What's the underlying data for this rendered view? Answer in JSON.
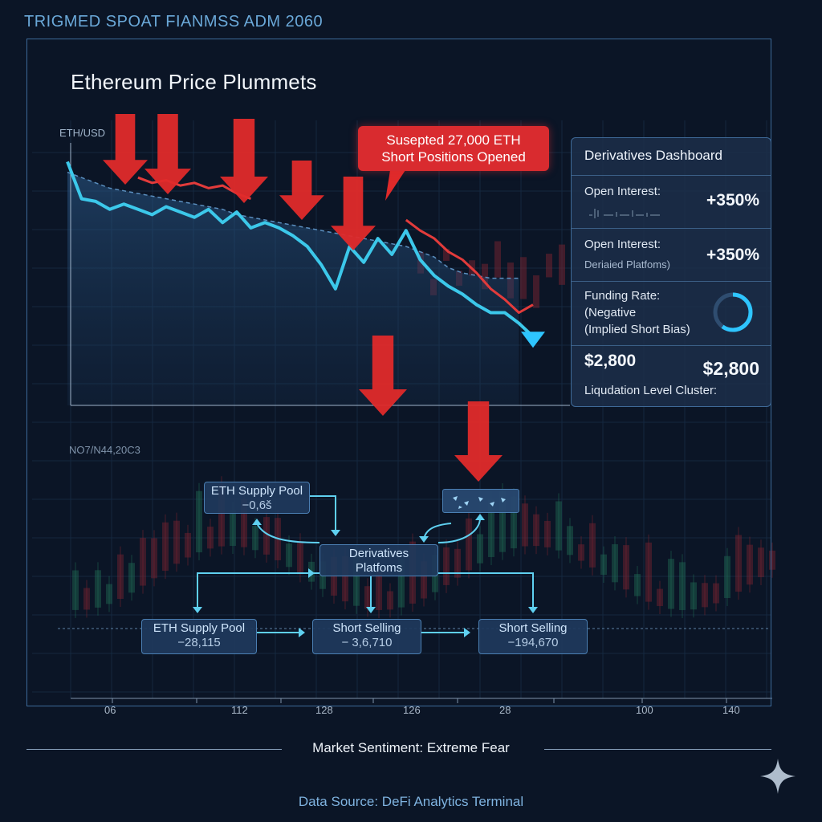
{
  "header": {
    "top_title": "TRIGMED SPOAT FIANMSS ADM 2060",
    "title": "Ethereum Price Plummets",
    "callout": "Susepted 27,000 ETH\nShort Positions Opened",
    "date_label": "NO7/N44,20C3"
  },
  "colors": {
    "price_line": "#3cc8ea",
    "short_line": "#e23b3b",
    "arrow_red": "#e02a2a",
    "accent_blue": "#2ec5ff",
    "background": "#0b1526"
  },
  "chart_data": {
    "type": "line",
    "title": "Ethereum Price Plummets",
    "ylabel": "ETH/USD",
    "xlabel": "",
    "x_ticks": [
      "06",
      "112",
      "128",
      "126",
      "28",
      "100",
      "140"
    ],
    "series": [
      {
        "color": "#3cc8ea",
        "values": [
          92,
          78,
          77,
          74,
          76,
          74,
          72,
          75,
          73,
          71,
          74,
          69,
          73,
          67,
          69,
          67,
          64,
          60,
          53,
          44,
          60,
          54,
          63,
          57,
          66,
          55,
          49,
          45,
          42,
          38,
          35,
          35,
          31,
          26
        ]
      },
      {
        "color": "#e23b3b",
        "values": [
          null,
          null,
          null,
          null,
          null,
          86,
          84,
          85,
          83,
          84,
          82,
          83,
          80,
          78,
          null,
          null,
          null,
          null,
          null,
          null,
          null,
          null,
          null,
          null,
          70,
          66,
          63,
          58,
          55,
          50,
          44,
          40,
          35,
          38,
          null
        ]
      },
      {
        "color": "#5b8fbf",
        "values": [
          88,
          86,
          84,
          82,
          81,
          80,
          79,
          78,
          77,
          76,
          75,
          74,
          72,
          71,
          70,
          69,
          68,
          67,
          66,
          65,
          64,
          63,
          62,
          61,
          60,
          58,
          56,
          52,
          50,
          49,
          48,
          48,
          48
        ]
      }
    ],
    "annotations": [
      "Susepted 27,000 ETH Short Positions Opened"
    ],
    "grid": true
  },
  "dashboard": {
    "title": "Derivatives Dashboard",
    "rows": [
      {
        "label": "Open Interest:",
        "sub": "",
        "value": "+350%"
      },
      {
        "label": "Open Interest:",
        "sub": "Deriaied Platfoms)",
        "value": "+350%"
      },
      {
        "label": "Funding Rate:\n(Negative\n(Implied Short Bias)",
        "sub": "",
        "value": ""
      },
      {
        "label": "$2,800",
        "sub": "Liqudation Level Cluster:",
        "value": "$2,800"
      }
    ],
    "gauge_fraction": 0.6
  },
  "flow": {
    "nodes": [
      {
        "name": "ETH Supply Pool",
        "value": "−0,6š"
      },
      {
        "name": "Derivatives",
        "value": "Platfoms"
      },
      {
        "name": "ETH Supply Pool",
        "value": "−28,115"
      },
      {
        "name": "Short Selling",
        "value": "− 3,6,710"
      },
      {
        "name": "Short Selling",
        "value": "−194,670"
      }
    ]
  },
  "footer": {
    "sentiment": "Market Sentiment: Extreme Fear",
    "source": "Data Source: DeFi Analytics Terminal"
  }
}
